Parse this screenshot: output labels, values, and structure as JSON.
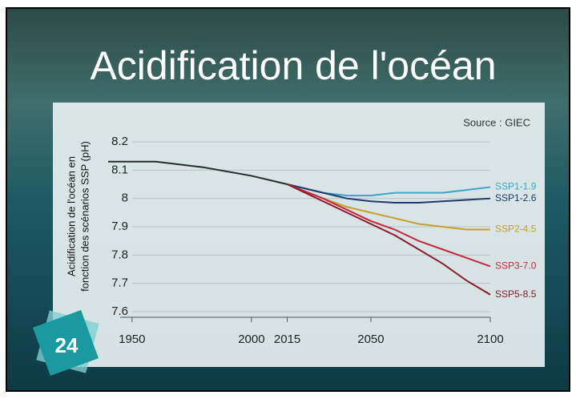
{
  "chart_data": {
    "type": "line",
    "title": "Acidification de l'océan",
    "page_number": "24",
    "annotations": [
      "Source : GIEC"
    ],
    "ylabel": [
      "Acidification de l'océan en",
      "fonction des scénarios SSP (pH)"
    ],
    "x": [
      1940,
      1960,
      1980,
      2000,
      2015,
      2030,
      2040,
      2050,
      2060,
      2070,
      2080,
      2090,
      2100
    ],
    "xlim": [
      1940,
      2100
    ],
    "xticks": [
      1950,
      2000,
      2015,
      2050,
      2100
    ],
    "ylim": [
      7.58,
      8.22
    ],
    "yticks": [
      7.6,
      7.7,
      7.8,
      7.9,
      8.0,
      8.1,
      8.2
    ],
    "grid": true,
    "series": [
      {
        "name": null,
        "color": "#2b2b2b",
        "values": [
          8.13,
          8.13,
          8.11,
          8.08,
          8.05,
          null,
          null,
          null,
          null,
          null,
          null,
          null,
          null
        ]
      },
      {
        "name": "SSP1-1.9",
        "color": "#3aa6c9",
        "values": [
          null,
          null,
          null,
          null,
          8.05,
          8.02,
          8.01,
          8.01,
          8.02,
          8.02,
          8.02,
          8.03,
          8.04
        ]
      },
      {
        "name": "SSP1-2.6",
        "color": "#1f3a6b",
        "values": [
          null,
          null,
          null,
          null,
          8.05,
          8.02,
          8.0,
          7.99,
          7.985,
          7.985,
          7.99,
          7.995,
          8.0
        ]
      },
      {
        "name": "SSP2-4.5",
        "color": "#c8a02a",
        "values": [
          null,
          null,
          null,
          null,
          8.05,
          8.0,
          7.97,
          7.95,
          7.93,
          7.91,
          7.9,
          7.89,
          7.89
        ]
      },
      {
        "name": "SSP3-7.0",
        "color": "#c8283c",
        "values": [
          null,
          null,
          null,
          null,
          8.05,
          8.0,
          7.96,
          7.92,
          7.89,
          7.85,
          7.82,
          7.79,
          7.76
        ]
      },
      {
        "name": "SSP5-8.5",
        "color": "#8b1a2a",
        "values": [
          null,
          null,
          null,
          null,
          8.05,
          7.99,
          7.95,
          7.91,
          7.87,
          7.82,
          7.77,
          7.71,
          7.66
        ]
      }
    ]
  }
}
